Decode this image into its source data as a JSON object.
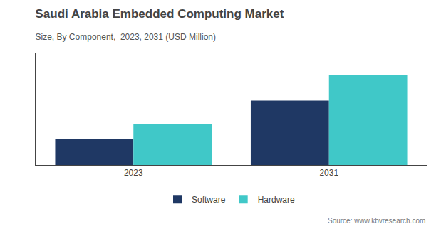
{
  "chart_data": {
    "type": "bar",
    "title": "Saudi Arabia Embedded Computing Market",
    "subtitle": "Size, By Component,  2023, 2031 (USD Million)",
    "categories": [
      "2023",
      "2031"
    ],
    "series": [
      {
        "name": "Software",
        "color": "#1f3864",
        "values": [
          30,
          75
        ]
      },
      {
        "name": "Hardware",
        "color": "#40c8c8",
        "values": [
          48,
          105
        ]
      }
    ],
    "ylim": [
      0,
      130
    ],
    "tick_labels": "x",
    "grid": false,
    "legend": "bottom",
    "annotations": [
      "Source: www.kbvresearch.com"
    ]
  }
}
